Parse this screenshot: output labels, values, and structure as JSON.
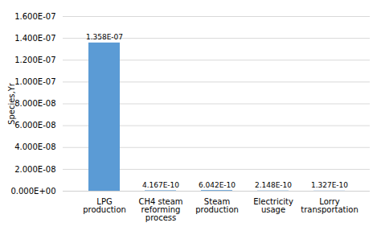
{
  "chart_data": {
    "type": "bar",
    "categories": [
      "LPG\nproduction",
      "CH4 steam\nreforming\nprocess",
      "Steam\nproduction",
      "Electricity\nusage",
      "Lorry\ntransportation"
    ],
    "values": [
      1.358e-07,
      4.167e-10,
      6.042e-10,
      2.148e-10,
      1.327e-10
    ],
    "value_labels": [
      "1.358E-07",
      "4.167E-10",
      "6.042E-10",
      "2.148E-10",
      "1.327E-10"
    ],
    "data_labels": true,
    "color": "#5B9BD5",
    "ylabel": "Species,Yr",
    "ylim": [
      0,
      1.6e-07
    ],
    "yticks": [
      {
        "value": 0.0,
        "label": "0.000E+00"
      },
      {
        "value": 2e-08,
        "label": "2.000E-08"
      },
      {
        "value": 4e-08,
        "label": "4.000E-08"
      },
      {
        "value": 6e-08,
        "label": "6.000E-08"
      },
      {
        "value": 8e-08,
        "label": "8.000E-08"
      },
      {
        "value": 1e-07,
        "label": "1.000E-07"
      },
      {
        "value": 1.2e-07,
        "label": "1.200E-07"
      },
      {
        "value": 1.4e-07,
        "label": "1.400E-07"
      },
      {
        "value": 1.6e-07,
        "label": "1.600E-07"
      }
    ],
    "grid": true
  }
}
